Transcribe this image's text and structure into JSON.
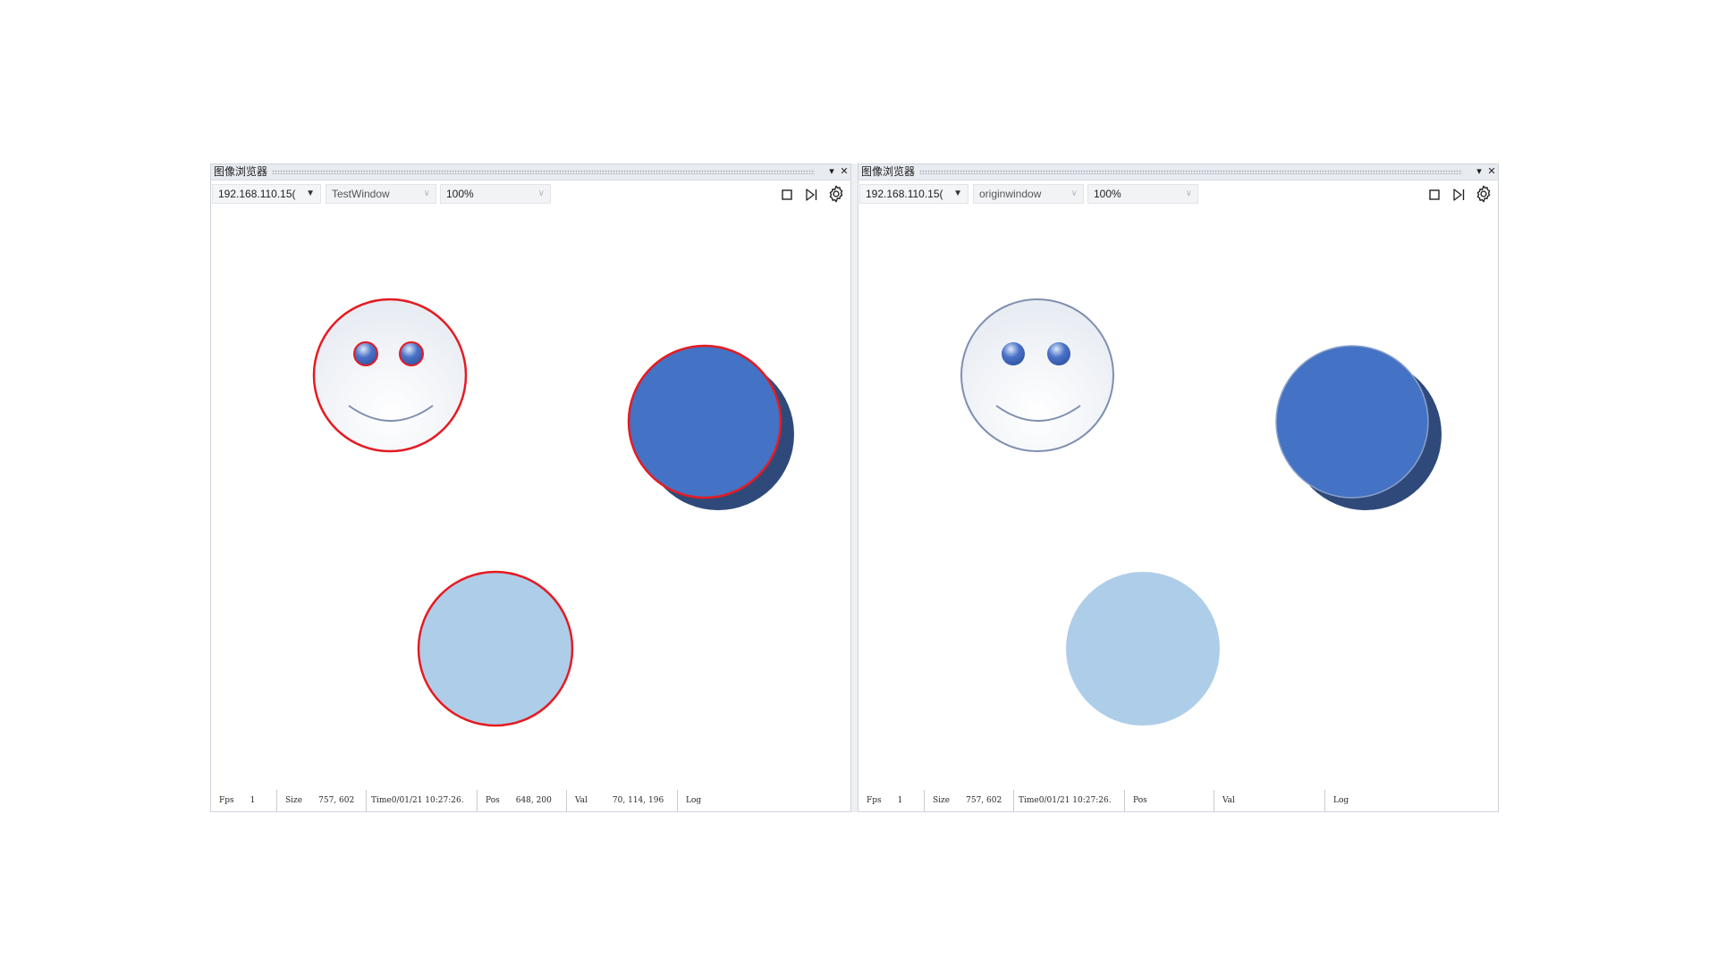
{
  "panels": [
    {
      "title": "图像浏览器",
      "ip": "192.168.110.15(",
      "window": "TestWindow",
      "zoom": "100%",
      "status": {
        "fps_label": "Fps",
        "fps": "1",
        "size_label": "Size",
        "size": "757, 602",
        "time_label": "Time",
        "time": "0/01/21 10:27:26.",
        "pos_label": "Pos",
        "pos": "648, 200",
        "val_label": "Val",
        "val": "70, 114, 196",
        "log_label": "Log"
      }
    },
    {
      "title": "图像浏览器",
      "ip": "192.168.110.15(",
      "window": "originwindow",
      "zoom": "100%",
      "status": {
        "fps_label": "Fps",
        "fps": "1",
        "size_label": "Size",
        "size": "757, 602",
        "time_label": "Time",
        "time": "0/01/21 10:27:26.",
        "pos_label": "Pos",
        "pos": "",
        "val_label": "Val",
        "val": "",
        "log_label": "Log"
      }
    }
  ],
  "icons": [
    "dropdown-icon",
    "close-icon",
    "stop-icon",
    "step-forward-icon",
    "gear-icon"
  ],
  "colors": {
    "highlight_outline": "#e51b22",
    "dark_circle": "#4472c4",
    "shadow_circle": "#2f4a7a",
    "light_circle": "#aecde9",
    "smiley_outline": "#7f8fb0"
  }
}
